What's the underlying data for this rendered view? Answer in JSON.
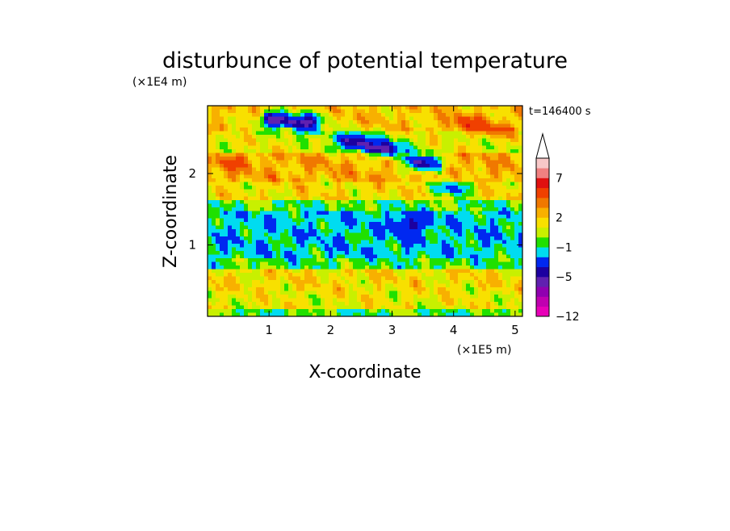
{
  "chart_data": {
    "type": "heatmap",
    "title": "disturbunce of potential temperature",
    "xlabel": "X-coordinate",
    "ylabel": "Z-coordinate",
    "x_multiplier": "(×1E5 m)",
    "y_multiplier": "(×1E4 m)",
    "time_label": "t=146400 s",
    "xlim": [
      0,
      5.12
    ],
    "ylim": [
      0,
      2.95
    ],
    "x_ticks": [
      1,
      2,
      3,
      4,
      5
    ],
    "y_ticks": [
      1,
      2
    ],
    "colorbar": {
      "tick_labels": [
        "7",
        "2",
        "−1",
        "−5",
        "−12"
      ],
      "levels": [
        {
          "lo": -12,
          "hi": -10,
          "color": "#e800b8"
        },
        {
          "lo": -10,
          "hi": -8,
          "color": "#c000b0"
        },
        {
          "lo": -8,
          "hi": -7,
          "color": "#9000b0"
        },
        {
          "lo": -7,
          "hi": -5,
          "color": "#6020b0"
        },
        {
          "lo": -5,
          "hi": -4,
          "color": "#1c00a0"
        },
        {
          "lo": -4,
          "hi": -2,
          "color": "#0028f0"
        },
        {
          "lo": -2,
          "hi": -1,
          "color": "#00dcf0"
        },
        {
          "lo": -1,
          "hi": 0,
          "color": "#20e000"
        },
        {
          "lo": 0,
          "hi": 1,
          "color": "#c8f000"
        },
        {
          "lo": 1,
          "hi": 2,
          "color": "#f8e000"
        },
        {
          "lo": 2,
          "hi": 3,
          "color": "#f8b000"
        },
        {
          "lo": 3,
          "hi": 4,
          "color": "#f07800"
        },
        {
          "lo": 4,
          "hi": 6,
          "color": "#f04000"
        },
        {
          "lo": 6,
          "hi": 7,
          "color": "#e01010"
        },
        {
          "lo": 7,
          "hi": 9,
          "color": "#f08080"
        },
        {
          "lo": 9,
          "hi": 11,
          "color": "#f8c8c8"
        }
      ],
      "extend_top_color": "#ffffff"
    },
    "field": {
      "description_rows_top_to_bottom": "z bands from 2.95 down to 0, values in K",
      "bands": [
        {
          "z": [
            2.6,
            2.95
          ],
          "value": 2
        },
        {
          "z": [
            2.3,
            2.6
          ],
          "value": 1
        },
        {
          "z": [
            1.9,
            2.3
          ],
          "value": 2.5
        },
        {
          "z": [
            1.65,
            1.9
          ],
          "value": 1.5
        },
        {
          "z": [
            1.45,
            1.65
          ],
          "value": -0.5
        },
        {
          "z": [
            0.8,
            1.45
          ],
          "value": -1.5
        },
        {
          "z": [
            0.65,
            0.8
          ],
          "value": -0.5
        },
        {
          "z": [
            0.35,
            0.65
          ],
          "value": 1.5
        },
        {
          "z": [
            0.1,
            0.35
          ],
          "value": 1.2
        },
        {
          "z": [
            0.0,
            0.1
          ],
          "value": -0.5
        }
      ],
      "features": [
        {
          "x": 1.1,
          "z": 2.75,
          "value": -4.5
        },
        {
          "x": 1.6,
          "z": 2.72,
          "value": -4.5
        },
        {
          "x": 2.4,
          "z": 2.45,
          "value": -4.5
        },
        {
          "x": 2.9,
          "z": 2.35,
          "value": -4.5
        },
        {
          "x": 3.5,
          "z": 2.15,
          "value": -4.5
        },
        {
          "x": 4.0,
          "z": 1.8,
          "value": -3
        },
        {
          "x": 3.3,
          "z": 1.3,
          "value": -4.5
        },
        {
          "x": 4.2,
          "z": 2.7,
          "value": 5
        },
        {
          "x": 4.7,
          "z": 2.6,
          "value": 4.5
        },
        {
          "x": 0.4,
          "z": 2.15,
          "value": 4
        }
      ]
    }
  }
}
